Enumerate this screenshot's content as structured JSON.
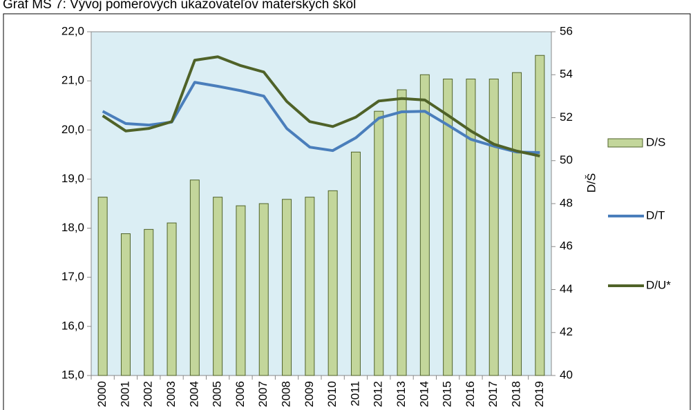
{
  "chart_data": {
    "type": "combo",
    "title": "Graf MŠ 7: Vývoj pomerových ukazovateľov materských škôl",
    "y2_label": "D/Š",
    "categories": [
      "2000",
      "2001",
      "2002",
      "2003",
      "2004",
      "2005",
      "2006",
      "2007",
      "2008",
      "2009",
      "2010",
      "2011",
      "2012",
      "2013",
      "2014",
      "2015",
      "2016",
      "2017",
      "2018",
      "2019"
    ],
    "ylim": [
      15,
      22
    ],
    "yticks": [
      {
        "value": 15,
        "label": "15,0"
      },
      {
        "value": 16,
        "label": "16,0"
      },
      {
        "value": 17,
        "label": "17,0"
      },
      {
        "value": 18,
        "label": "18,0"
      },
      {
        "value": 19,
        "label": "19,0"
      },
      {
        "value": 20,
        "label": "20,0"
      },
      {
        "value": 21,
        "label": "21,0"
      },
      {
        "value": 22,
        "label": "22,0"
      }
    ],
    "y2lim": [
      40,
      56
    ],
    "y2ticks": [
      40,
      42,
      44,
      46,
      48,
      50,
      52,
      54,
      56
    ],
    "series": [
      {
        "name": "D/S",
        "type": "bar",
        "axis": "y2",
        "color": "#c3d69b",
        "values": [
          48.3,
          46.6,
          46.8,
          47.1,
          49.1,
          48.3,
          47.9,
          48.0,
          48.2,
          48.3,
          48.6,
          50.4,
          52.3,
          53.3,
          54.0,
          53.8,
          53.8,
          53.8,
          54.1,
          54.9
        ]
      },
      {
        "name": "D/T",
        "type": "line",
        "color": "#4a7ebb",
        "values": [
          20.38,
          20.13,
          20.1,
          20.16,
          20.97,
          20.89,
          20.8,
          20.69,
          20.03,
          19.65,
          19.58,
          19.84,
          20.24,
          20.37,
          20.38,
          20.1,
          19.81,
          19.67,
          19.55,
          19.54
        ]
      },
      {
        "name": "D/U*",
        "type": "line",
        "color": "#4f6228",
        "values": [
          20.29,
          19.98,
          20.03,
          20.17,
          21.42,
          21.49,
          21.31,
          21.18,
          20.58,
          20.17,
          20.07,
          20.26,
          20.59,
          20.64,
          20.61,
          20.3,
          19.98,
          19.71,
          19.57,
          19.47
        ]
      }
    ]
  }
}
